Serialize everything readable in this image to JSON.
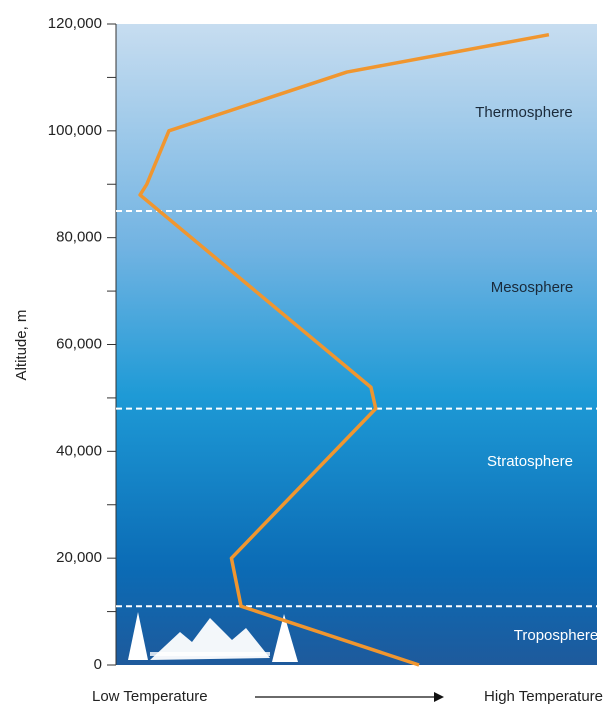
{
  "chart_data": {
    "type": "line",
    "y_label": "Altitude, m",
    "x_label_low": "Low Temperature",
    "x_label_high": "High Temperature",
    "xlim": [
      0,
      100
    ],
    "ylim": [
      0,
      120000
    ],
    "yticks": [
      0,
      {
        "value": 20000,
        "label": "20,000"
      },
      {
        "value": 40000,
        "label": "40,000"
      },
      {
        "value": 60000,
        "label": "60,000"
      },
      {
        "value": 80000,
        "label": "80,000"
      },
      {
        "value": 100000,
        "label": "100,000"
      },
      {
        "value": 120000,
        "label": "120,000"
      }
    ],
    "yminor_ticks": [
      10000,
      30000,
      50000,
      70000,
      90000,
      110000
    ],
    "boundaries": [
      11000,
      48000,
      85000
    ],
    "layers": [
      "Troposphere",
      "Stratosphere",
      "Mesosphere",
      "Thermosphere"
    ],
    "series": [
      {
        "color": "#f0962f",
        "x": [
          63,
          26,
          24,
          54,
          53,
          5,
          6.4,
          11,
          48,
          90
        ],
        "values": [
          0,
          11000,
          20000,
          48000,
          52000,
          88000,
          90000,
          100000,
          111000,
          118000
        ]
      }
    ]
  }
}
